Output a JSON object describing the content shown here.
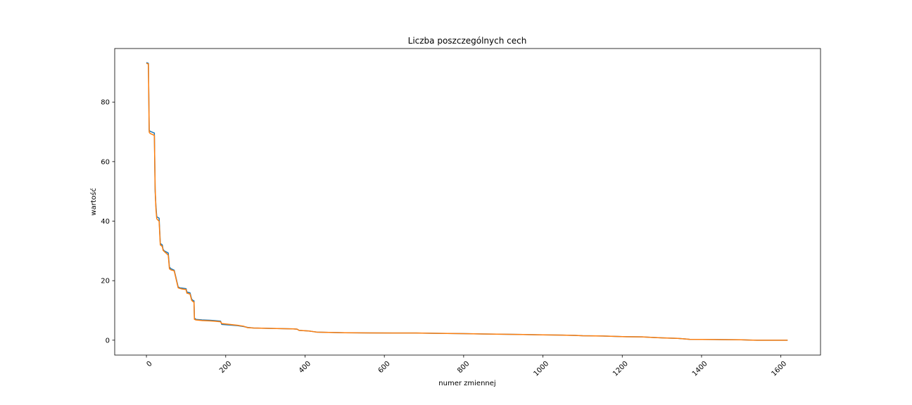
{
  "chart_data": {
    "type": "line",
    "title": "Liczba poszczególnych cech",
    "xlabel": "numer zmiennej",
    "ylabel": "wartość",
    "xlim": [
      -80,
      1700
    ],
    "ylim": [
      -5,
      98
    ],
    "xticks": [
      0,
      200,
      400,
      600,
      800,
      1000,
      1200,
      1400,
      1600
    ],
    "yticks": [
      0,
      20,
      40,
      60,
      80
    ],
    "x_tick_rotation": 45,
    "grid": false,
    "legend": "none",
    "series": [
      {
        "color": "#1f77b4",
        "x": [
          0,
          5,
          7,
          9,
          20,
          22,
          24,
          26,
          28,
          32,
          35,
          40,
          42,
          45,
          55,
          58,
          60,
          62,
          70,
          74,
          80,
          84,
          90,
          100,
          102,
          110,
          114,
          117,
          120,
          121,
          125,
          140,
          160,
          170,
          187,
          190,
          210,
          230,
          245,
          255,
          270,
          300,
          340,
          370,
          380,
          385,
          410,
          420,
          430,
          500,
          560,
          620,
          680,
          740,
          800,
          850,
          900,
          950,
          1000,
          1050,
          1080,
          1100,
          1150,
          1200,
          1250,
          1280,
          1300,
          1340,
          1360,
          1370,
          1400,
          1450,
          1500,
          1520,
          1540,
          1600,
          1617
        ],
        "y": [
          93.3,
          93.0,
          70.5,
          70.2,
          69.6,
          50.0,
          45.0,
          41.5,
          41.3,
          41.0,
          32.5,
          32.0,
          30.5,
          30.0,
          29.3,
          24.5,
          24.3,
          24.0,
          23.5,
          21.3,
          17.9,
          17.6,
          17.5,
          17.3,
          16.2,
          15.9,
          13.8,
          13.4,
          13.2,
          7.4,
          7.0,
          6.8,
          6.7,
          6.6,
          6.4,
          5.3,
          5.1,
          4.9,
          4.6,
          4.3,
          4.1,
          4.0,
          3.9,
          3.8,
          3.7,
          3.3,
          3.1,
          2.9,
          2.7,
          2.5,
          2.45,
          2.4,
          2.4,
          2.3,
          2.2,
          2.1,
          2.0,
          1.9,
          1.8,
          1.7,
          1.6,
          1.5,
          1.4,
          1.2,
          1.1,
          0.9,
          0.8,
          0.6,
          0.4,
          0.3,
          0.25,
          0.2,
          0.15,
          0.05,
          0.0,
          0.0,
          0.0
        ]
      },
      {
        "color": "#ff7f0e",
        "x": [
          0,
          5,
          7,
          9,
          20,
          22,
          24,
          26,
          28,
          32,
          35,
          40,
          42,
          45,
          55,
          58,
          60,
          62,
          70,
          74,
          80,
          84,
          90,
          100,
          102,
          110,
          114,
          117,
          120,
          121,
          125,
          140,
          160,
          170,
          187,
          190,
          210,
          230,
          245,
          255,
          270,
          300,
          340,
          370,
          380,
          385,
          410,
          420,
          430,
          500,
          560,
          620,
          680,
          740,
          800,
          850,
          900,
          950,
          1000,
          1050,
          1080,
          1100,
          1150,
          1200,
          1250,
          1280,
          1300,
          1340,
          1360,
          1370,
          1400,
          1450,
          1500,
          1520,
          1540,
          1600,
          1617
        ],
        "y": [
          93.0,
          92.8,
          69.9,
          69.5,
          68.8,
          51.0,
          44.0,
          40.8,
          40.5,
          40.0,
          32.0,
          31.5,
          30.2,
          29.8,
          28.6,
          24.0,
          23.8,
          23.6,
          23.3,
          21.0,
          17.6,
          17.4,
          17.2,
          17.0,
          15.8,
          15.5,
          13.4,
          13.0,
          12.8,
          7.0,
          6.8,
          6.6,
          6.5,
          6.4,
          6.2,
          5.6,
          5.3,
          5.0,
          4.7,
          4.2,
          4.1,
          4.0,
          3.9,
          3.8,
          3.7,
          3.3,
          3.1,
          2.9,
          2.7,
          2.5,
          2.45,
          2.4,
          2.4,
          2.3,
          2.2,
          2.1,
          2.0,
          1.9,
          1.8,
          1.7,
          1.6,
          1.5,
          1.4,
          1.2,
          1.1,
          0.9,
          0.8,
          0.6,
          0.4,
          0.3,
          0.25,
          0.2,
          0.15,
          0.05,
          0.0,
          0.0,
          0.0
        ]
      }
    ]
  }
}
